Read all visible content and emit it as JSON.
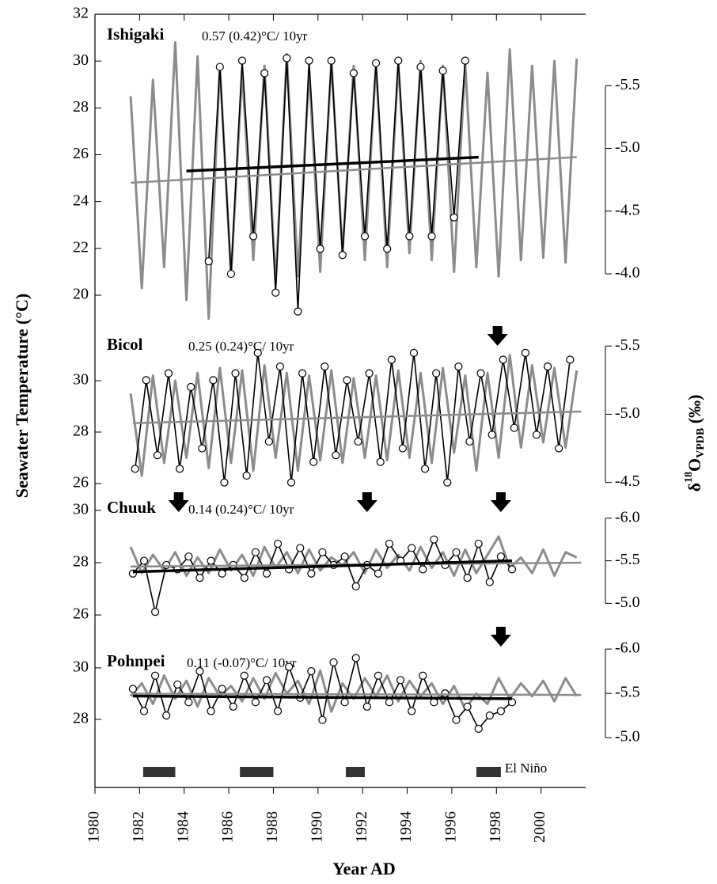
{
  "chart_data": [
    {
      "type": "line",
      "title": "Ishigaki",
      "annotation": "0.57 (0.42)°C/ 10yr",
      "ylim": [
        20,
        32
      ],
      "yticks": [
        20,
        22,
        24,
        26,
        28,
        30,
        32
      ],
      "y2lim": [
        -3.83,
        -6.07
      ],
      "y2ticks": [
        {
          "value": -4,
          "label": "-4.0"
        },
        -4.5,
        {
          "value": -5,
          "label": "-5.0"
        },
        -5.5
      ],
      "series": [
        {
          "color": "#8c8c8c",
          "x": [
            1981.6,
            1982.1,
            1982.6,
            1983.1,
            1983.6,
            1984.1,
            1984.6,
            1985.1,
            1985.6,
            1986.1,
            1986.6,
            1987.1,
            1987.6,
            1988.1,
            1988.6,
            1989.1,
            1989.6,
            1990.1,
            1990.6,
            1991.1,
            1991.6,
            1992.1,
            1992.6,
            1993.1,
            1993.6,
            1994.1,
            1994.6,
            1995.1,
            1995.6,
            1996.1,
            1996.6,
            1997.1,
            1997.6,
            1998.1,
            1998.6,
            1999.1,
            1999.6,
            2000.1,
            2000.6,
            2001.1,
            2001.6
          ],
          "values": [
            28.5,
            20.3,
            29.2,
            21.2,
            30.8,
            19.8,
            30.2,
            19.0,
            29.8,
            20.8,
            29.6,
            21.5,
            29.8,
            20.5,
            30.3,
            20.8,
            29.6,
            21.0,
            30.0,
            21.8,
            29.8,
            21.5,
            29.9,
            21.2,
            29.9,
            21.8,
            30.0,
            21.5,
            29.8,
            21.0,
            29.9,
            21.2,
            29.5,
            20.8,
            30.5,
            21.5,
            29.8,
            21.6,
            30.0,
            21.4,
            30.1
          ]
        },
        {
          "color": "#000000",
          "axis": "y2",
          "markers": true,
          "x": [
            1985.1,
            1985.6,
            1986.1,
            1986.6,
            1987.1,
            1987.6,
            1988.1,
            1988.6,
            1989.1,
            1989.6,
            1990.1,
            1990.6,
            1991.1,
            1991.6,
            1992.1,
            1992.6,
            1993.1,
            1993.6,
            1994.1,
            1994.6,
            1995.1,
            1995.6,
            1996.1,
            1996.6
          ],
          "values": [
            -4.1,
            -5.65,
            -4.0,
            -5.7,
            -4.3,
            -5.6,
            -3.85,
            -5.72,
            -3.7,
            -5.7,
            -4.2,
            -5.7,
            -4.15,
            -5.6,
            -4.3,
            -5.68,
            -4.2,
            -5.7,
            -4.3,
            -5.65,
            -4.3,
            -5.62,
            -4.45,
            -5.7
          ]
        }
      ],
      "trends": [
        {
          "color": "#8c8c8c",
          "x": [
            1981.6,
            2001.6
          ],
          "values": [
            24.8,
            25.9
          ]
        },
        {
          "color": "#000000",
          "axis": "y2",
          "x": [
            1984.1,
            1997.2
          ],
          "values": [
            -4.82,
            -4.93
          ]
        }
      ],
      "arrows": []
    },
    {
      "type": "line",
      "title": "Bicol",
      "annotation": "0.25 (0.24)°C/ 10yr",
      "ylim": [
        25.72,
        31.88
      ],
      "yticks": [
        26,
        28,
        30
      ],
      "y2lim": [
        -4.44,
        -5.6
      ],
      "y2ticks": [
        -4.5,
        {
          "value": -5,
          "label": "-5.0"
        },
        -5.5
      ],
      "series": [
        {
          "color": "#8c8c8c",
          "x": [
            1981.6,
            1982.1,
            1982.6,
            1983.1,
            1983.6,
            1984.1,
            1984.6,
            1985.1,
            1985.6,
            1986.1,
            1986.6,
            1987.1,
            1987.6,
            1988.1,
            1988.6,
            1989.1,
            1989.6,
            1990.1,
            1990.6,
            1991.1,
            1991.6,
            1992.1,
            1992.6,
            1993.1,
            1993.6,
            1994.1,
            1994.6,
            1995.1,
            1995.6,
            1996.1,
            1996.6,
            1997.1,
            1997.6,
            1998.1,
            1998.6,
            1999.1,
            1999.6,
            2000.1,
            2000.6,
            2001.1,
            2001.6
          ],
          "values": [
            29.5,
            26.3,
            30.2,
            26.8,
            30.0,
            27.0,
            30.3,
            26.6,
            30.5,
            26.8,
            30.4,
            26.5,
            30.6,
            27.0,
            30.3,
            26.5,
            30.2,
            26.9,
            30.4,
            26.8,
            30.1,
            27.0,
            30.2,
            26.9,
            30.4,
            27.0,
            30.3,
            26.8,
            30.5,
            27.2,
            30.2,
            26.5,
            30.3,
            27.0,
            31.0,
            27.4,
            30.6,
            27.6,
            30.5,
            27.4,
            30.4
          ]
        },
        {
          "color": "#000000",
          "axis": "y2",
          "markers": true,
          "x": [
            1981.8,
            1982.3,
            1982.8,
            1983.3,
            1983.8,
            1984.3,
            1984.8,
            1985.3,
            1985.8,
            1986.3,
            1986.8,
            1987.3,
            1987.8,
            1988.3,
            1988.8,
            1989.3,
            1989.8,
            1990.3,
            1990.8,
            1991.3,
            1991.8,
            1992.3,
            1992.8,
            1993.3,
            1993.8,
            1994.3,
            1994.8,
            1995.3,
            1995.8,
            1996.3,
            1996.8,
            1997.3,
            1997.8,
            1998.3,
            1998.8,
            1999.3,
            1999.8,
            2000.3,
            2000.8,
            2001.3
          ],
          "values": [
            -4.6,
            -5.25,
            -4.7,
            -5.3,
            -4.6,
            -5.2,
            -4.75,
            -5.25,
            -4.5,
            -5.3,
            -4.55,
            -5.45,
            -4.8,
            -5.35,
            -4.5,
            -5.3,
            -4.65,
            -5.35,
            -4.7,
            -5.25,
            -4.8,
            -5.3,
            -4.65,
            -5.4,
            -4.75,
            -5.45,
            -4.6,
            -5.3,
            -4.5,
            -5.35,
            -4.8,
            -5.3,
            -4.85,
            -5.4,
            -4.9,
            -5.45,
            -4.85,
            -5.35,
            -4.75,
            -5.4
          ]
        }
      ],
      "trends": [
        {
          "color": "#8c8c8c",
          "x": [
            1981.7,
            2001.8
          ],
          "values": [
            28.35,
            28.8
          ]
        }
      ],
      "arrows": [
        1998.05
      ]
    },
    {
      "type": "line",
      "title": "Chuuk",
      "annotation": "0.14 (0.24)°C/ 10yr",
      "ylim": [
        25.76,
        30.45
      ],
      "yticks": [
        26,
        28,
        30
      ],
      "y2lim": [
        -4.79,
        -6.23
      ],
      "y2ticks": [
        {
          "value": -5,
          "label": "-5.0"
        },
        -5.5,
        {
          "value": -6,
          "label": "-6.0"
        }
      ],
      "series": [
        {
          "color": "#8c8c8c",
          "x": [
            1981.6,
            1982.1,
            1982.6,
            1983.1,
            1983.6,
            1984.1,
            1984.6,
            1985.1,
            1985.6,
            1986.1,
            1986.6,
            1987.1,
            1987.6,
            1988.1,
            1988.6,
            1989.1,
            1989.6,
            1990.1,
            1990.6,
            1991.1,
            1991.6,
            1992.1,
            1992.6,
            1993.1,
            1993.6,
            1994.1,
            1994.6,
            1995.1,
            1995.6,
            1996.1,
            1996.6,
            1997.1,
            1997.6,
            1998.1,
            1998.6,
            1999.1,
            1999.6,
            2000.1,
            2000.6,
            2001.1,
            2001.6
          ],
          "values": [
            28.6,
            27.6,
            28.3,
            27.7,
            28.4,
            27.5,
            28.2,
            27.6,
            28.5,
            27.7,
            28.3,
            27.5,
            28.6,
            27.8,
            28.4,
            27.6,
            28.5,
            27.7,
            28.2,
            27.9,
            28.4,
            27.6,
            28.5,
            27.8,
            28.3,
            27.7,
            28.6,
            27.8,
            28.4,
            27.5,
            28.5,
            27.6,
            28.3,
            29.0,
            27.8,
            28.2,
            27.6,
            28.5,
            27.5,
            28.4,
            28.2
          ]
        },
        {
          "color": "#000000",
          "axis": "y2",
          "markers": true,
          "x": [
            1981.7,
            1982.2,
            1982.7,
            1983.2,
            1983.7,
            1984.2,
            1984.7,
            1985.2,
            1985.7,
            1986.2,
            1986.7,
            1987.2,
            1987.7,
            1988.2,
            1988.7,
            1989.2,
            1989.7,
            1990.2,
            1990.7,
            1991.2,
            1991.7,
            1992.2,
            1992.7,
            1993.2,
            1993.7,
            1994.2,
            1994.7,
            1995.2,
            1995.7,
            1996.2,
            1996.7,
            1997.2,
            1997.7,
            1998.2,
            1998.7
          ],
          "values": [
            -5.35,
            -5.5,
            -4.9,
            -5.45,
            -5.4,
            -5.55,
            -5.3,
            -5.5,
            -5.35,
            -5.45,
            -5.3,
            -5.6,
            -5.35,
            -5.7,
            -5.4,
            -5.65,
            -5.35,
            -5.6,
            -5.45,
            -5.55,
            -5.2,
            -5.45,
            -5.35,
            -5.7,
            -5.5,
            -5.65,
            -5.4,
            -5.75,
            -5.45,
            -5.6,
            -5.3,
            -5.7,
            -5.25,
            -5.55,
            -5.4
          ]
        }
      ],
      "trends": [
        {
          "color": "#8c8c8c",
          "x": [
            1981.6,
            2001.8
          ],
          "values": [
            27.85,
            28.0
          ]
        },
        {
          "color": "#000000",
          "axis": "y2",
          "x": [
            1981.7,
            1998.7
          ],
          "values": [
            -5.37,
            -5.5
          ]
        }
      ],
      "arrows": [
        1983.75,
        1992.2,
        1998.2
      ]
    },
    {
      "type": "line",
      "title": "Pohnpei",
      "annotation": "0.11 (-0.07)°C/ 10yr",
      "ylim": [
        26.74,
        31.35
      ],
      "yticks": [
        28,
        30
      ],
      "y2lim": [
        -4.84,
        -6.18
      ],
      "y2ticks": [
        {
          "value": -5,
          "label": "-5.0"
        },
        -5.5,
        {
          "value": -6,
          "label": "-6.0"
        }
      ],
      "series": [
        {
          "color": "#8c8c8c",
          "x": [
            1981.6,
            1982.1,
            1982.6,
            1983.1,
            1983.6,
            1984.1,
            1984.6,
            1985.1,
            1985.6,
            1986.1,
            1986.6,
            1987.1,
            1987.6,
            1988.1,
            1988.6,
            1989.1,
            1989.6,
            1990.1,
            1990.6,
            1991.1,
            1991.6,
            1992.1,
            1992.6,
            1993.1,
            1993.6,
            1994.1,
            1994.6,
            1995.1,
            1995.6,
            1996.1,
            1996.6,
            1997.1,
            1997.6,
            1998.1,
            1998.6,
            1999.1,
            1999.6,
            2000.1,
            2000.6,
            2001.1,
            2001.6
          ],
          "values": [
            28.9,
            29.4,
            28.6,
            29.7,
            28.8,
            29.5,
            28.5,
            29.6,
            28.9,
            29.3,
            28.7,
            29.6,
            28.8,
            29.8,
            29.0,
            29.5,
            28.6,
            29.9,
            28.3,
            29.4,
            28.8,
            29.6,
            28.9,
            29.7,
            28.7,
            29.5,
            28.9,
            29.4,
            28.6,
            29.3,
            28.4,
            29.0,
            28.6,
            29.6,
            28.8,
            29.4,
            28.9,
            29.5,
            28.7,
            29.6,
            28.9
          ]
        },
        {
          "color": "#000000",
          "axis": "y2",
          "markers": true,
          "x": [
            1981.7,
            1982.2,
            1982.7,
            1983.2,
            1983.7,
            1984.2,
            1984.7,
            1985.2,
            1985.7,
            1986.2,
            1986.7,
            1987.2,
            1987.7,
            1988.2,
            1988.7,
            1989.2,
            1989.7,
            1990.2,
            1990.7,
            1991.2,
            1991.7,
            1992.2,
            1992.7,
            1993.2,
            1993.7,
            1994.2,
            1994.7,
            1995.2,
            1995.7,
            1996.2,
            1996.7,
            1997.2,
            1997.7,
            1998.2,
            1998.7
          ],
          "values": [
            -5.55,
            -5.3,
            -5.7,
            -5.25,
            -5.6,
            -5.4,
            -5.75,
            -5.3,
            -5.55,
            -5.35,
            -5.7,
            -5.4,
            -5.65,
            -5.3,
            -5.8,
            -5.45,
            -5.75,
            -5.2,
            -5.85,
            -5.4,
            -5.9,
            -5.35,
            -5.7,
            -5.4,
            -5.65,
            -5.3,
            -5.7,
            -5.4,
            -5.5,
            -5.2,
            -5.35,
            -5.1,
            -5.25,
            -5.3,
            -5.4
          ]
        }
      ],
      "trends": [
        {
          "color": "#8c8c8c",
          "x": [
            1981.7,
            2001.8
          ],
          "values": [
            29.0,
            28.95
          ]
        },
        {
          "color": "#000000",
          "axis": "y2",
          "x": [
            1981.7,
            1998.7
          ],
          "values": [
            -5.47,
            -5.44
          ]
        }
      ],
      "arrows": [
        1998.2
      ]
    }
  ],
  "x_axis": {
    "xlabel": "Year AD",
    "xlim": [
      1980,
      2002
    ],
    "xticks": [
      1980,
      1982,
      1984,
      1986,
      1988,
      1990,
      1992,
      1994,
      1996,
      1998,
      2000
    ]
  },
  "ylabel": "Seawater Temperature (°C)",
  "y2label": {
    "prefix": "δ",
    "sup": "18",
    "base": "O",
    "sub": "VPDB",
    "suffix": " (‰)"
  },
  "el_nino": {
    "label": "El Niño",
    "periods": [
      [
        1982.16,
        1983.6
      ],
      [
        1986.5,
        1988.0
      ],
      [
        1991.25,
        1992.1
      ],
      [
        1997.1,
        1998.2
      ]
    ]
  }
}
